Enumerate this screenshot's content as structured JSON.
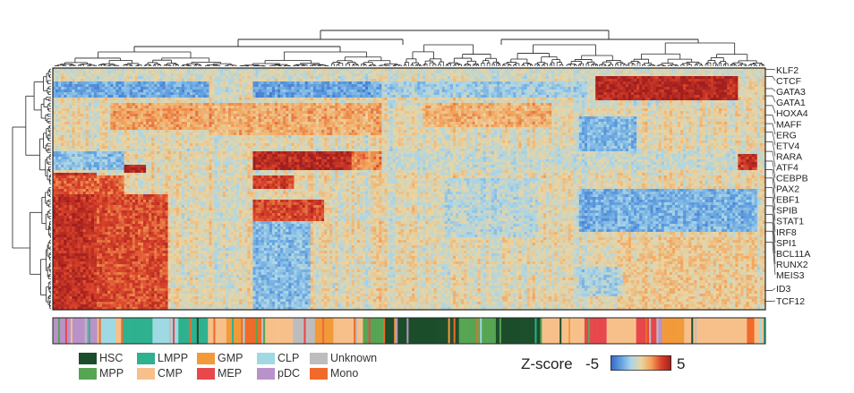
{
  "chart_data": {
    "type": "heatmap",
    "title": "",
    "xlabel": "",
    "ylabel": "",
    "genes": [
      "KLF2",
      "CTCF",
      "GATA3",
      "GATA1",
      "HOXA4",
      "MAFF",
      "ERG",
      "ETV4",
      "RARA",
      "ATF4",
      "CEBPB",
      "PAX2",
      "EBF1",
      "SPIB",
      "STAT1",
      "IRF8",
      "SPI1",
      "BCL11A",
      "RUNX2",
      "MEIS3",
      "ID3",
      "TCF12"
    ],
    "gene_rows": [
      0.005,
      0.035,
      0.085,
      0.115,
      0.155,
      0.195,
      0.23,
      0.265,
      0.305,
      0.345,
      0.385,
      0.42,
      0.455,
      0.495,
      0.535,
      0.57,
      0.605,
      0.64,
      0.675,
      0.72,
      0.92,
      0.965
    ],
    "n_rows": 90,
    "n_cols": 260,
    "z_range": [
      -5,
      5
    ],
    "colorbar": {
      "label": "Z-score",
      "min_label": "-5",
      "max_label": "5"
    },
    "colorscale": [
      "#3a62c4",
      "#5f9fe0",
      "#a9d5e8",
      "#e9d5a3",
      "#f3a25a",
      "#d9422a",
      "#a11e1e"
    ],
    "blocks": [
      {
        "r0": 0.0,
        "r1": 0.03,
        "c0": 0.0,
        "c1": 1.0,
        "z": -0.6
      },
      {
        "r0": 0.06,
        "r1": 0.12,
        "c0": 0.0,
        "c1": 0.22,
        "z": -3.0
      },
      {
        "r0": 0.06,
        "r1": 0.12,
        "c0": 0.28,
        "c1": 0.46,
        "z": -3.2
      },
      {
        "r0": 0.06,
        "r1": 0.12,
        "c0": 0.46,
        "c1": 0.75,
        "z": -1.8
      },
      {
        "r0": 0.03,
        "r1": 0.13,
        "c0": 0.76,
        "c1": 0.96,
        "z": 4.4
      },
      {
        "r0": 0.15,
        "r1": 0.26,
        "c0": 0.08,
        "c1": 0.22,
        "z": 1.5
      },
      {
        "r0": 0.14,
        "r1": 0.28,
        "c0": 0.22,
        "c1": 0.46,
        "z": 1.3
      },
      {
        "r0": 0.14,
        "r1": 0.24,
        "c0": 0.52,
        "c1": 0.7,
        "z": 1.2
      },
      {
        "r0": 0.2,
        "r1": 0.36,
        "c0": 0.74,
        "c1": 0.82,
        "z": -2.6
      },
      {
        "r0": 0.34,
        "r1": 0.42,
        "c0": 0.28,
        "c1": 0.42,
        "z": 4.3
      },
      {
        "r0": 0.34,
        "r1": 0.42,
        "c0": 0.42,
        "c1": 0.46,
        "z": 2.0
      },
      {
        "r0": 0.34,
        "r1": 0.42,
        "c0": 0.0,
        "c1": 0.1,
        "z": -2.4
      },
      {
        "r0": 0.34,
        "r1": 0.42,
        "c0": 0.46,
        "c1": 1.0,
        "z": -0.9
      },
      {
        "r0": 0.36,
        "r1": 0.42,
        "c0": 0.96,
        "c1": 0.99,
        "z": 3.8
      },
      {
        "r0": 0.4,
        "r1": 0.43,
        "c0": 0.1,
        "c1": 0.13,
        "z": 4.6
      },
      {
        "r0": 0.43,
        "r1": 1.0,
        "c0": 0.0,
        "c1": 0.06,
        "z": 4.0
      },
      {
        "r0": 0.52,
        "r1": 1.0,
        "c0": 0.06,
        "c1": 0.16,
        "z": 3.2
      },
      {
        "r0": 0.45,
        "r1": 0.52,
        "c0": 0.0,
        "c1": 0.1,
        "z": 2.8
      },
      {
        "r0": 0.44,
        "r1": 0.5,
        "c0": 0.28,
        "c1": 0.34,
        "z": 3.6
      },
      {
        "r0": 0.54,
        "r1": 0.63,
        "c0": 0.28,
        "c1": 0.38,
        "z": 3.4
      },
      {
        "r0": 0.63,
        "r1": 1.0,
        "c0": 0.28,
        "c1": 0.36,
        "z": -2.4
      },
      {
        "r0": 0.5,
        "r1": 0.68,
        "c0": 0.74,
        "c1": 0.99,
        "z": -2.8
      },
      {
        "r0": 0.82,
        "r1": 0.94,
        "c0": 0.74,
        "c1": 0.97,
        "z": -1.6
      },
      {
        "r0": 0.46,
        "r1": 0.7,
        "c0": 0.55,
        "c1": 0.68,
        "z": -1.2
      },
      {
        "r0": 0.7,
        "r1": 1.0,
        "c0": 0.8,
        "c1": 0.99,
        "z": 0.4
      }
    ],
    "annotation_bar": {
      "categories": [
        "HSC",
        "MPP",
        "LMPP",
        "CMP",
        "GMP",
        "MEP",
        "CLP",
        "pDC",
        "Unknown",
        "Mono"
      ],
      "colors": {
        "HSC": "#1c4d2b",
        "MPP": "#56a552",
        "LMPP": "#2eb18f",
        "CMP": "#f7c08a",
        "GMP": "#f29a3a",
        "MEP": "#e8474c",
        "CLP": "#9fd9e3",
        "pDC": "#b892c9",
        "Unknown": "#bdbdbd",
        "Mono": "#f06a2a"
      },
      "segments": [
        {
          "cat": "pDC",
          "frac": 0.065
        },
        {
          "cat": "CLP",
          "frac": 0.02
        },
        {
          "cat": "CMP",
          "frac": 0.01
        },
        {
          "cat": "LMPP",
          "frac": 0.04
        },
        {
          "cat": "CLP",
          "frac": 0.035
        },
        {
          "cat": "LMPP",
          "frac": 0.04
        },
        {
          "cat": "CMP",
          "frac": 0.025
        },
        {
          "cat": "GMP",
          "frac": 0.02
        },
        {
          "cat": "Mono",
          "frac": 0.03
        },
        {
          "cat": "CMP",
          "frac": 0.04
        },
        {
          "cat": "Unknown",
          "frac": 0.03
        },
        {
          "cat": "GMP",
          "frac": 0.025
        },
        {
          "cat": "CMP",
          "frac": 0.04
        },
        {
          "cat": "MPP",
          "frac": 0.03
        },
        {
          "cat": "HSC",
          "frac": 0.1
        },
        {
          "cat": "MPP",
          "frac": 0.05
        },
        {
          "cat": "HSC",
          "frac": 0.06
        },
        {
          "cat": "CMP",
          "frac": 0.06
        },
        {
          "cat": "MEP",
          "frac": 0.03
        },
        {
          "cat": "CMP",
          "frac": 0.04
        },
        {
          "cat": "MEP",
          "frac": 0.035
        },
        {
          "cat": "GMP",
          "frac": 0.03
        },
        {
          "cat": "CMP",
          "frac": 0.085
        },
        {
          "cat": "Mono",
          "frac": 0.01
        },
        {
          "cat": "CMP",
          "frac": 0.015
        }
      ]
    },
    "legend": [
      {
        "label": "HSC",
        "cat": "HSC"
      },
      {
        "label": "MPP",
        "cat": "MPP"
      },
      {
        "label": "LMPP",
        "cat": "LMPP"
      },
      {
        "label": "CMP",
        "cat": "CMP"
      },
      {
        "label": "GMP",
        "cat": "GMP"
      },
      {
        "label": "MEP",
        "cat": "MEP"
      },
      {
        "label": "CLP",
        "cat": "CLP"
      },
      {
        "label": "pDC",
        "cat": "pDC"
      },
      {
        "label": "Unknown",
        "cat": "Unknown"
      },
      {
        "label": "Mono",
        "cat": "Mono"
      }
    ]
  }
}
